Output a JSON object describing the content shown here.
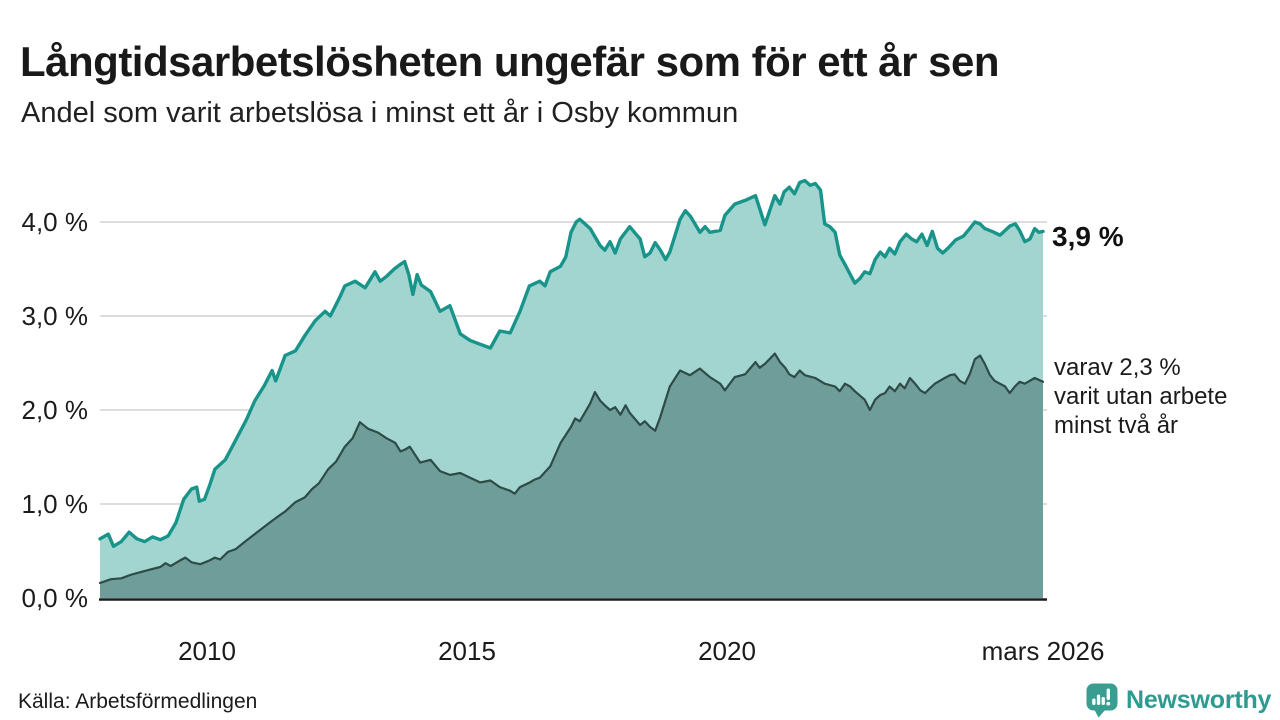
{
  "header": {
    "title": "Långtidsarbetslösheten ungefär som för ett år sen",
    "subtitle": "Andel som varit arbetslösa i minst ett år i Osby kommun"
  },
  "footer": {
    "source": "Källa: Arbetsförmedlingen",
    "logo_text": "Newsworthy",
    "logo_color": "#3a9d92"
  },
  "chart_data": {
    "type": "area",
    "title": "Långtidsarbetslösheten ungefär som för ett år sen",
    "subtitle": "Andel som varit arbetslösa i minst ett år i Osby kommun",
    "unit": "%",
    "x_range_years": [
      2007.94,
      2026.08
    ],
    "ylim": [
      0,
      4.6
    ],
    "grid": "horizontal",
    "axis_color": "#1b1b1b",
    "gridline_color": "#dcdce1",
    "yticks": [
      {
        "label": "0,0 %",
        "value": 0
      },
      {
        "label": "1,0 %",
        "value": 1
      },
      {
        "label": "2,0 %",
        "value": 2
      },
      {
        "label": "3,0 %",
        "value": 3
      },
      {
        "label": "4,0 %",
        "value": 4
      }
    ],
    "xticks": [
      {
        "label": "2010",
        "year": 2010
      },
      {
        "label": "2015",
        "year": 2015
      },
      {
        "label": "2020",
        "year": 2020
      },
      {
        "label": "mars 2026",
        "year": 2026.08
      }
    ],
    "annotations": [
      {
        "text": "3,9 %",
        "series": "total",
        "bold": true
      },
      {
        "lines": [
          "varav 2,3 %",
          "varit utan arbete",
          "minst två år"
        ],
        "series": "minst_tva_ar"
      }
    ],
    "series": [
      {
        "name": "total",
        "description": "Andel arbetslösa minst ett år",
        "end_value_label": "3,9 %",
        "color": "#18948a",
        "fill": "#a2d5d0",
        "points": [
          [
            2007.94,
            0.63
          ],
          [
            2008.1,
            0.68
          ],
          [
            2008.2,
            0.55
          ],
          [
            2008.35,
            0.6
          ],
          [
            2008.5,
            0.7
          ],
          [
            2008.65,
            0.63
          ],
          [
            2008.8,
            0.6
          ],
          [
            2008.95,
            0.65
          ],
          [
            2009.1,
            0.62
          ],
          [
            2009.25,
            0.66
          ],
          [
            2009.4,
            0.8
          ],
          [
            2009.55,
            1.05
          ],
          [
            2009.7,
            1.16
          ],
          [
            2009.8,
            1.18
          ],
          [
            2009.85,
            1.03
          ],
          [
            2009.95,
            1.05
          ],
          [
            2010.05,
            1.2
          ],
          [
            2010.15,
            1.37
          ],
          [
            2010.35,
            1.47
          ],
          [
            2010.55,
            1.68
          ],
          [
            2010.75,
            1.89
          ],
          [
            2010.92,
            2.1
          ],
          [
            2011.1,
            2.26
          ],
          [
            2011.25,
            2.42
          ],
          [
            2011.32,
            2.31
          ],
          [
            2011.5,
            2.58
          ],
          [
            2011.7,
            2.63
          ],
          [
            2011.88,
            2.79
          ],
          [
            2012.08,
            2.95
          ],
          [
            2012.27,
            3.05
          ],
          [
            2012.37,
            3.0
          ],
          [
            2012.56,
            3.21
          ],
          [
            2012.65,
            3.32
          ],
          [
            2012.85,
            3.37
          ],
          [
            2013.04,
            3.3
          ],
          [
            2013.23,
            3.47
          ],
          [
            2013.33,
            3.37
          ],
          [
            2013.45,
            3.42
          ],
          [
            2013.6,
            3.5
          ],
          [
            2013.72,
            3.55
          ],
          [
            2013.8,
            3.58
          ],
          [
            2013.88,
            3.44
          ],
          [
            2013.96,
            3.23
          ],
          [
            2014.04,
            3.44
          ],
          [
            2014.12,
            3.33
          ],
          [
            2014.3,
            3.26
          ],
          [
            2014.48,
            3.05
          ],
          [
            2014.67,
            3.11
          ],
          [
            2014.87,
            2.81
          ],
          [
            2015.06,
            2.74
          ],
          [
            2015.25,
            2.7
          ],
          [
            2015.45,
            2.66
          ],
          [
            2015.63,
            2.84
          ],
          [
            2015.83,
            2.82
          ],
          [
            2016.02,
            3.05
          ],
          [
            2016.2,
            3.32
          ],
          [
            2016.4,
            3.37
          ],
          [
            2016.5,
            3.32
          ],
          [
            2016.6,
            3.47
          ],
          [
            2016.8,
            3.53
          ],
          [
            2016.9,
            3.63
          ],
          [
            2017.0,
            3.89
          ],
          [
            2017.1,
            4.0
          ],
          [
            2017.17,
            4.03
          ],
          [
            2017.37,
            3.93
          ],
          [
            2017.56,
            3.75
          ],
          [
            2017.65,
            3.7
          ],
          [
            2017.75,
            3.79
          ],
          [
            2017.85,
            3.67
          ],
          [
            2017.95,
            3.82
          ],
          [
            2018.13,
            3.95
          ],
          [
            2018.25,
            3.87
          ],
          [
            2018.33,
            3.82
          ],
          [
            2018.42,
            3.63
          ],
          [
            2018.52,
            3.67
          ],
          [
            2018.62,
            3.78
          ],
          [
            2018.72,
            3.7
          ],
          [
            2018.82,
            3.6
          ],
          [
            2018.9,
            3.68
          ],
          [
            2019.1,
            4.03
          ],
          [
            2019.2,
            4.12
          ],
          [
            2019.3,
            4.06
          ],
          [
            2019.48,
            3.89
          ],
          [
            2019.58,
            3.95
          ],
          [
            2019.67,
            3.89
          ],
          [
            2019.87,
            3.91
          ],
          [
            2019.96,
            4.07
          ],
          [
            2020.15,
            4.19
          ],
          [
            2020.35,
            4.23
          ],
          [
            2020.55,
            4.28
          ],
          [
            2020.73,
            3.97
          ],
          [
            2020.92,
            4.28
          ],
          [
            2021.02,
            4.19
          ],
          [
            2021.1,
            4.32
          ],
          [
            2021.2,
            4.37
          ],
          [
            2021.3,
            4.3
          ],
          [
            2021.4,
            4.42
          ],
          [
            2021.5,
            4.44
          ],
          [
            2021.6,
            4.39
          ],
          [
            2021.7,
            4.41
          ],
          [
            2021.8,
            4.34
          ],
          [
            2021.88,
            3.98
          ],
          [
            2021.98,
            3.95
          ],
          [
            2022.08,
            3.89
          ],
          [
            2022.17,
            3.65
          ],
          [
            2022.27,
            3.55
          ],
          [
            2022.46,
            3.35
          ],
          [
            2022.56,
            3.4
          ],
          [
            2022.65,
            3.47
          ],
          [
            2022.75,
            3.45
          ],
          [
            2022.85,
            3.6
          ],
          [
            2022.95,
            3.68
          ],
          [
            2023.04,
            3.63
          ],
          [
            2023.13,
            3.72
          ],
          [
            2023.23,
            3.66
          ],
          [
            2023.33,
            3.79
          ],
          [
            2023.45,
            3.87
          ],
          [
            2023.55,
            3.82
          ],
          [
            2023.65,
            3.79
          ],
          [
            2023.75,
            3.87
          ],
          [
            2023.85,
            3.75
          ],
          [
            2023.95,
            3.9
          ],
          [
            2024.05,
            3.72
          ],
          [
            2024.15,
            3.67
          ],
          [
            2024.25,
            3.72
          ],
          [
            2024.4,
            3.81
          ],
          [
            2024.55,
            3.85
          ],
          [
            2024.67,
            3.93
          ],
          [
            2024.77,
            4.0
          ],
          [
            2024.87,
            3.98
          ],
          [
            2024.96,
            3.93
          ],
          [
            2025.1,
            3.9
          ],
          [
            2025.25,
            3.86
          ],
          [
            2025.35,
            3.91
          ],
          [
            2025.45,
            3.96
          ],
          [
            2025.55,
            3.98
          ],
          [
            2025.63,
            3.91
          ],
          [
            2025.73,
            3.79
          ],
          [
            2025.83,
            3.82
          ],
          [
            2025.92,
            3.93
          ],
          [
            2026.0,
            3.89
          ],
          [
            2026.08,
            3.9
          ]
        ]
      },
      {
        "name": "minst_tva_ar",
        "description": "Varav utan arbete minst två år",
        "end_value_label": "2,3 %",
        "color": "#2e4b48",
        "fill": "#6f9e9a",
        "points": [
          [
            2007.94,
            0.16
          ],
          [
            2008.15,
            0.2
          ],
          [
            2008.35,
            0.21
          ],
          [
            2008.55,
            0.25
          ],
          [
            2008.75,
            0.28
          ],
          [
            2008.95,
            0.31
          ],
          [
            2009.1,
            0.33
          ],
          [
            2009.2,
            0.37
          ],
          [
            2009.3,
            0.34
          ],
          [
            2009.48,
            0.4
          ],
          [
            2009.58,
            0.43
          ],
          [
            2009.7,
            0.38
          ],
          [
            2009.87,
            0.36
          ],
          [
            2010.05,
            0.4
          ],
          [
            2010.15,
            0.43
          ],
          [
            2010.25,
            0.41
          ],
          [
            2010.4,
            0.49
          ],
          [
            2010.55,
            0.52
          ],
          [
            2010.73,
            0.6
          ],
          [
            2010.87,
            0.66
          ],
          [
            2011.06,
            0.74
          ],
          [
            2011.2,
            0.8
          ],
          [
            2011.37,
            0.87
          ],
          [
            2011.5,
            0.92
          ],
          [
            2011.7,
            1.02
          ],
          [
            2011.88,
            1.07
          ],
          [
            2012.02,
            1.16
          ],
          [
            2012.15,
            1.22
          ],
          [
            2012.33,
            1.37
          ],
          [
            2012.48,
            1.45
          ],
          [
            2012.65,
            1.61
          ],
          [
            2012.8,
            1.7
          ],
          [
            2012.94,
            1.87
          ],
          [
            2013.1,
            1.8
          ],
          [
            2013.29,
            1.76
          ],
          [
            2013.45,
            1.7
          ],
          [
            2013.62,
            1.65
          ],
          [
            2013.72,
            1.56
          ],
          [
            2013.81,
            1.58
          ],
          [
            2013.9,
            1.61
          ],
          [
            2014.1,
            1.44
          ],
          [
            2014.3,
            1.47
          ],
          [
            2014.48,
            1.35
          ],
          [
            2014.67,
            1.31
          ],
          [
            2014.87,
            1.33
          ],
          [
            2015.06,
            1.28
          ],
          [
            2015.25,
            1.23
          ],
          [
            2015.45,
            1.25
          ],
          [
            2015.63,
            1.18
          ],
          [
            2015.83,
            1.14
          ],
          [
            2015.92,
            1.11
          ],
          [
            2016.02,
            1.18
          ],
          [
            2016.21,
            1.23
          ],
          [
            2016.3,
            1.26
          ],
          [
            2016.4,
            1.28
          ],
          [
            2016.6,
            1.4
          ],
          [
            2016.8,
            1.65
          ],
          [
            2017.0,
            1.82
          ],
          [
            2017.08,
            1.91
          ],
          [
            2017.17,
            1.88
          ],
          [
            2017.37,
            2.07
          ],
          [
            2017.46,
            2.19
          ],
          [
            2017.56,
            2.1
          ],
          [
            2017.65,
            2.05
          ],
          [
            2017.75,
            2.0
          ],
          [
            2017.85,
            2.03
          ],
          [
            2017.95,
            1.95
          ],
          [
            2018.05,
            2.05
          ],
          [
            2018.13,
            1.97
          ],
          [
            2018.33,
            1.84
          ],
          [
            2018.42,
            1.88
          ],
          [
            2018.52,
            1.82
          ],
          [
            2018.62,
            1.78
          ],
          [
            2018.72,
            1.93
          ],
          [
            2018.9,
            2.25
          ],
          [
            2019.1,
            2.42
          ],
          [
            2019.29,
            2.37
          ],
          [
            2019.48,
            2.44
          ],
          [
            2019.67,
            2.35
          ],
          [
            2019.87,
            2.28
          ],
          [
            2019.96,
            2.21
          ],
          [
            2020.15,
            2.35
          ],
          [
            2020.35,
            2.38
          ],
          [
            2020.55,
            2.51
          ],
          [
            2020.63,
            2.45
          ],
          [
            2020.73,
            2.49
          ],
          [
            2020.92,
            2.6
          ],
          [
            2021.02,
            2.51
          ],
          [
            2021.12,
            2.45
          ],
          [
            2021.2,
            2.38
          ],
          [
            2021.3,
            2.35
          ],
          [
            2021.4,
            2.42
          ],
          [
            2021.5,
            2.37
          ],
          [
            2021.7,
            2.34
          ],
          [
            2021.88,
            2.28
          ],
          [
            2022.08,
            2.25
          ],
          [
            2022.17,
            2.2
          ],
          [
            2022.27,
            2.28
          ],
          [
            2022.37,
            2.25
          ],
          [
            2022.46,
            2.2
          ],
          [
            2022.65,
            2.11
          ],
          [
            2022.75,
            2.0
          ],
          [
            2022.85,
            2.11
          ],
          [
            2022.95,
            2.16
          ],
          [
            2023.04,
            2.18
          ],
          [
            2023.13,
            2.25
          ],
          [
            2023.23,
            2.2
          ],
          [
            2023.33,
            2.28
          ],
          [
            2023.42,
            2.23
          ],
          [
            2023.52,
            2.34
          ],
          [
            2023.62,
            2.28
          ],
          [
            2023.72,
            2.21
          ],
          [
            2023.81,
            2.18
          ],
          [
            2023.9,
            2.23
          ],
          [
            2024.0,
            2.28
          ],
          [
            2024.19,
            2.34
          ],
          [
            2024.29,
            2.37
          ],
          [
            2024.38,
            2.38
          ],
          [
            2024.48,
            2.31
          ],
          [
            2024.58,
            2.28
          ],
          [
            2024.67,
            2.38
          ],
          [
            2024.77,
            2.54
          ],
          [
            2024.87,
            2.58
          ],
          [
            2024.96,
            2.49
          ],
          [
            2025.06,
            2.37
          ],
          [
            2025.15,
            2.31
          ],
          [
            2025.35,
            2.25
          ],
          [
            2025.44,
            2.18
          ],
          [
            2025.54,
            2.25
          ],
          [
            2025.63,
            2.3
          ],
          [
            2025.73,
            2.28
          ],
          [
            2025.92,
            2.34
          ],
          [
            2026.08,
            2.3
          ]
        ]
      }
    ]
  }
}
